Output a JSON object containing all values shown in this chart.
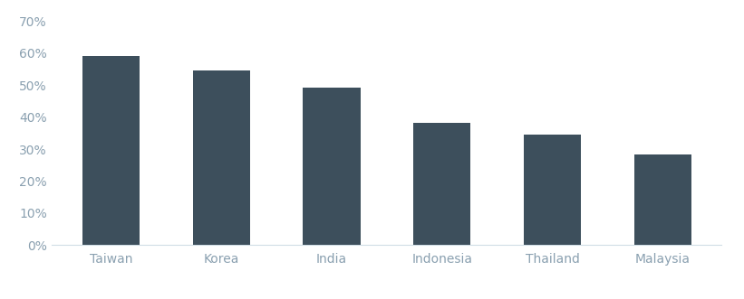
{
  "categories": [
    "Taiwan",
    "Korea",
    "India",
    "Indonesia",
    "Thailand",
    "Malaysia"
  ],
  "values": [
    0.59,
    0.545,
    0.492,
    0.382,
    0.344,
    0.282
  ],
  "bar_color": "#3d4f5c",
  "background_color": "#ffffff",
  "ylim": [
    0,
    0.7
  ],
  "yticks": [
    0.0,
    0.1,
    0.2,
    0.3,
    0.4,
    0.5,
    0.6,
    0.7
  ],
  "ytick_labels": [
    "0%",
    "10%",
    "20%",
    "30%",
    "40%",
    "50%",
    "60%",
    "70%"
  ],
  "tick_color": "#8aa0b0",
  "label_color": "#8aa0b0",
  "spine_color": "#d0dde5",
  "label_fontsize": 10,
  "tick_fontsize": 10,
  "bar_width": 0.52
}
